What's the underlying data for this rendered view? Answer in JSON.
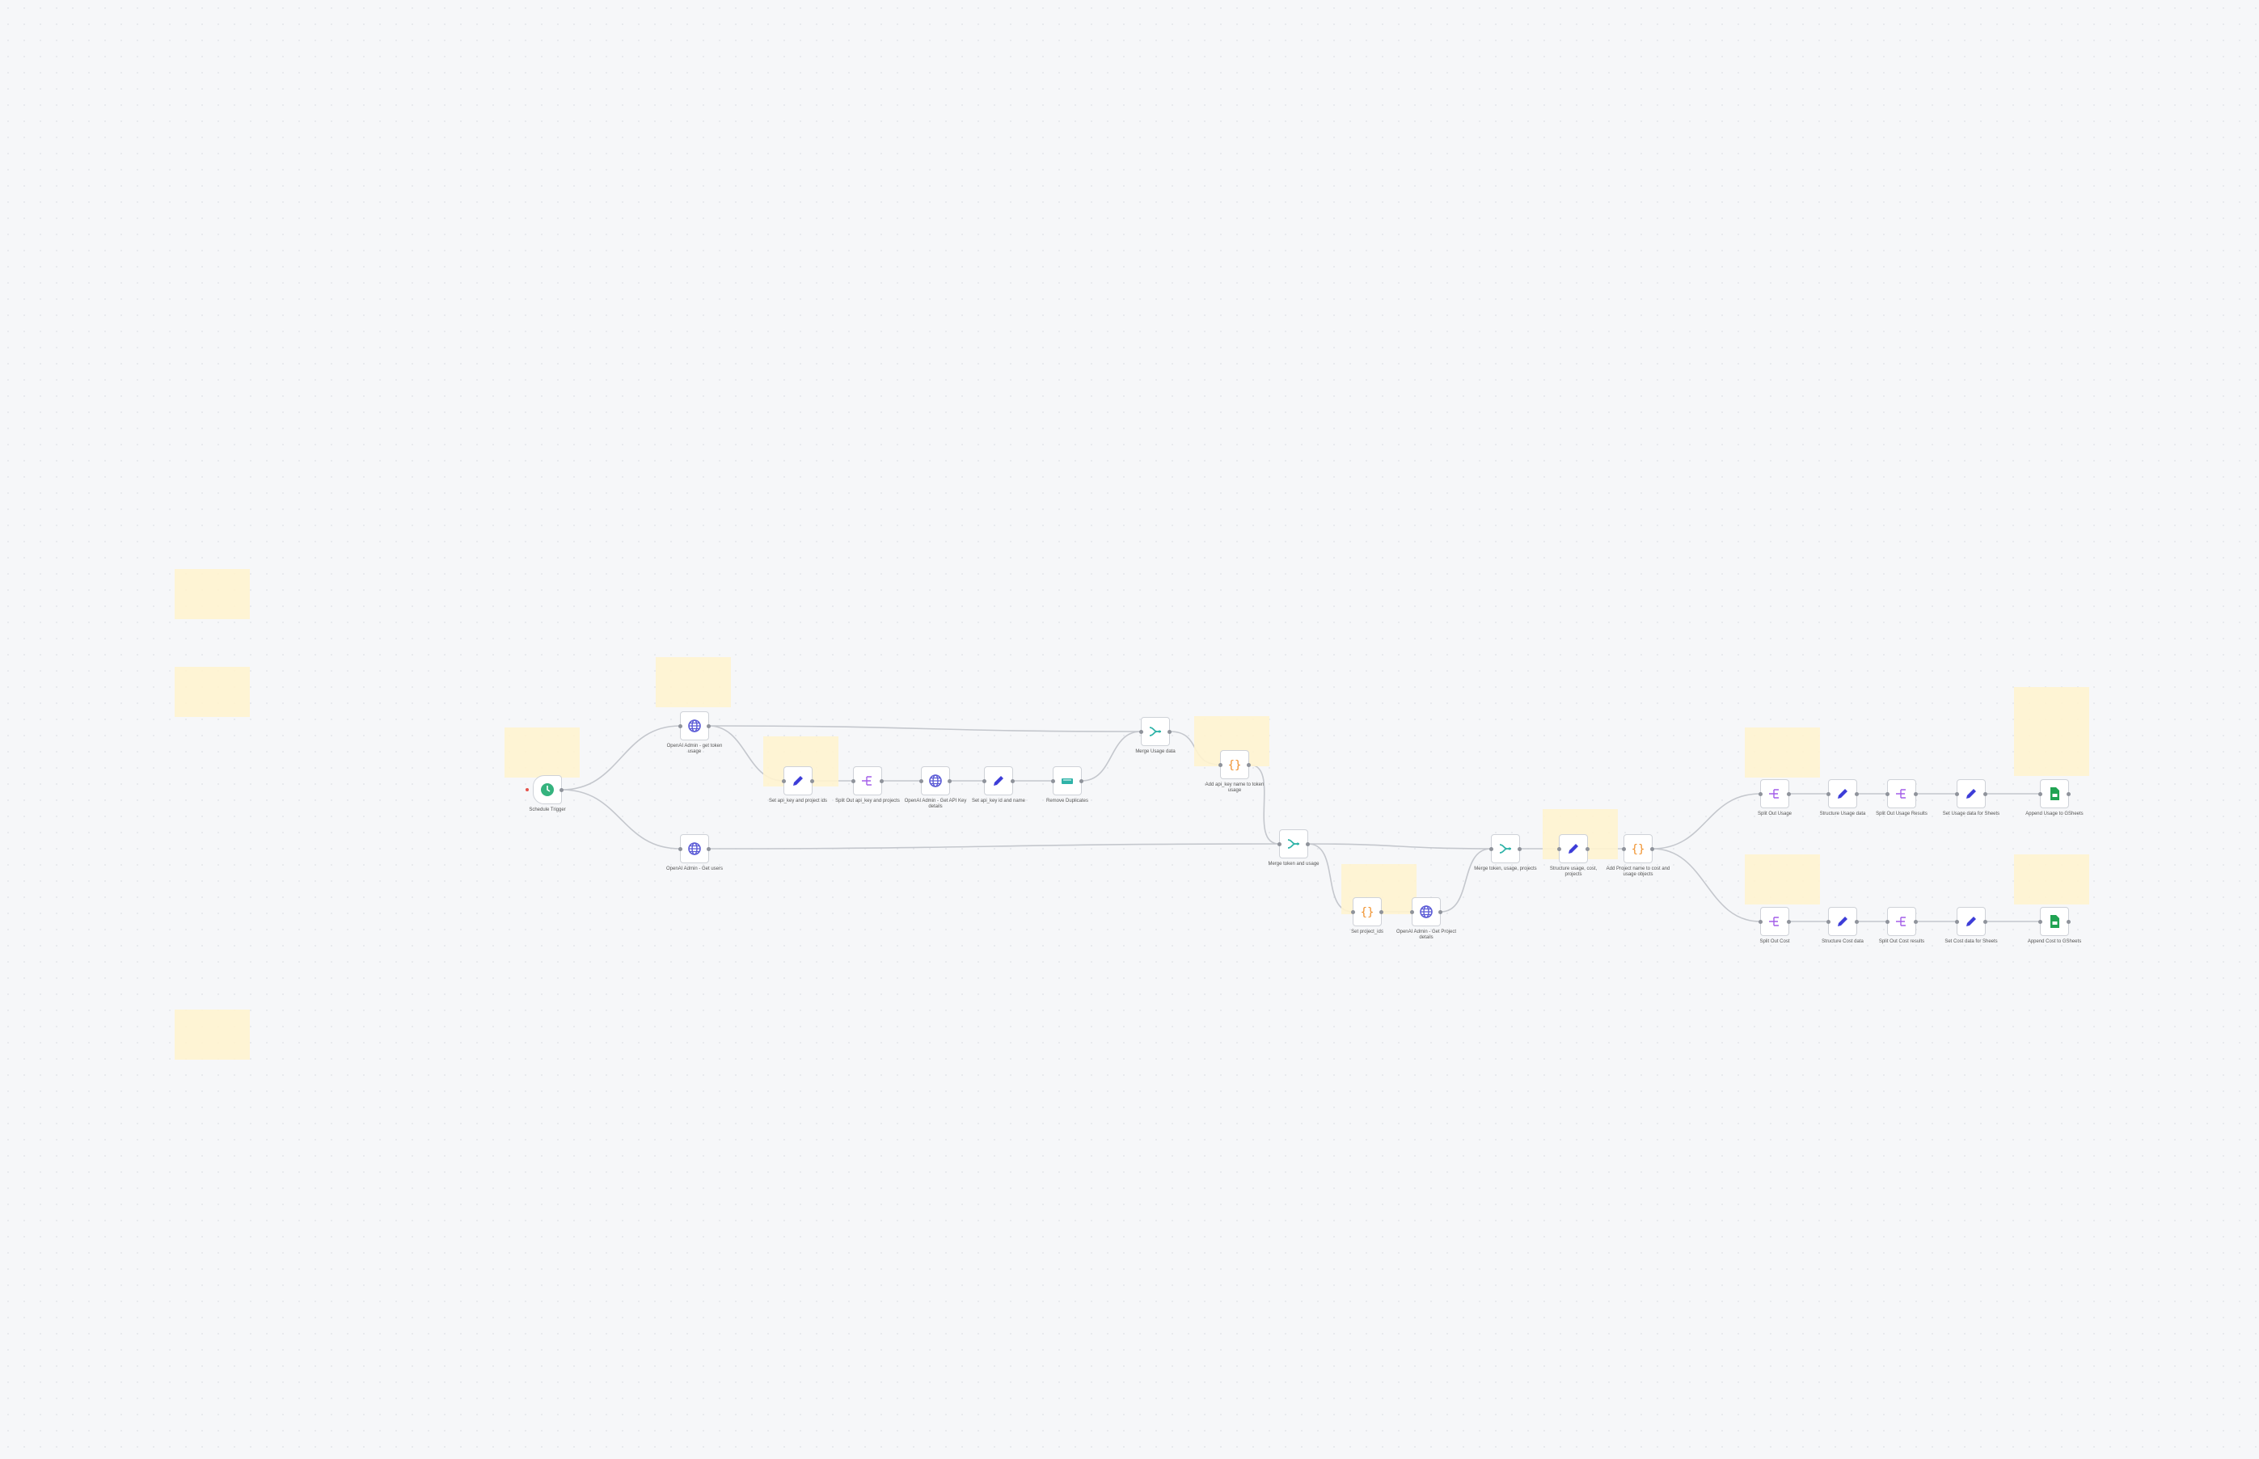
{
  "canvas": {
    "app": "workflow-editor"
  },
  "colors": {
    "clock": "#35b37e",
    "globe": "#5b5bd6",
    "pencil": "#3d3dd8",
    "split": "#a35ee8",
    "merge": "#2fb3a8",
    "code": "#f0922e",
    "dedupe": "#2fb3a8",
    "sheets": "#21a353",
    "sticky": "#fff3cf"
  },
  "nodes": [
    {
      "label": "Schedule Trigger",
      "icon": "clock"
    },
    {
      "label": "OpenAI Admin - get token usage",
      "icon": "globe"
    },
    {
      "label": "OpenAI Admin - Get users",
      "icon": "globe"
    },
    {
      "label": "Set api_key and project ids",
      "icon": "pencil"
    },
    {
      "label": "Split Out api_key and projects",
      "icon": "split"
    },
    {
      "label": "OpenAI Admin - Get API Key details",
      "icon": "globe"
    },
    {
      "label": "Set api_key id and name",
      "icon": "pencil"
    },
    {
      "label": "Remove Duplicates",
      "icon": "dedupe"
    },
    {
      "label": "Merge Usage data",
      "icon": "merge"
    },
    {
      "label": "Add api_key name to token usage",
      "icon": "code"
    },
    {
      "label": "Merge token and usage",
      "icon": "merge"
    },
    {
      "label": "Set project_ids",
      "icon": "code"
    },
    {
      "label": "OpenAI Admin - Get Project details",
      "icon": "globe"
    },
    {
      "label": "Merge token, usage, projects",
      "icon": "merge"
    },
    {
      "label": "Structure usage, cost, projects",
      "icon": "pencil"
    },
    {
      "label": "Add Project name to cost and usage objects",
      "icon": "code"
    },
    {
      "label": "Split Out Usage",
      "icon": "split"
    },
    {
      "label": "Structure Usage data",
      "icon": "pencil"
    },
    {
      "label": "Split Out Usage Results",
      "icon": "split"
    },
    {
      "label": "Set Usage data for Sheets",
      "icon": "pencil"
    },
    {
      "label": "Append Usage to GSheets",
      "icon": "sheets"
    },
    {
      "label": "Split Out Cost",
      "icon": "split"
    },
    {
      "label": "Structure Cost data",
      "icon": "pencil"
    },
    {
      "label": "Split Out Cost results",
      "icon": "split"
    },
    {
      "label": "Set Cost data for Sheets",
      "icon": "pencil"
    },
    {
      "label": "Append Cost to GSheets",
      "icon": "sheets"
    }
  ],
  "connections": [
    [
      0,
      1
    ],
    [
      0,
      2
    ],
    [
      1,
      3
    ],
    [
      3,
      4
    ],
    [
      4,
      5
    ],
    [
      5,
      6
    ],
    [
      6,
      7
    ],
    [
      1,
      8
    ],
    [
      7,
      8
    ],
    [
      8,
      9
    ],
    [
      9,
      10
    ],
    [
      2,
      10
    ],
    [
      10,
      11
    ],
    [
      11,
      12
    ],
    [
      10,
      13
    ],
    [
      12,
      13
    ],
    [
      13,
      14
    ],
    [
      14,
      15
    ],
    [
      15,
      16
    ],
    [
      16,
      17
    ],
    [
      17,
      18
    ],
    [
      18,
      19
    ],
    [
      19,
      20
    ],
    [
      15,
      21
    ],
    [
      21,
      22
    ],
    [
      22,
      23
    ],
    [
      23,
      24
    ],
    [
      24,
      25
    ]
  ]
}
